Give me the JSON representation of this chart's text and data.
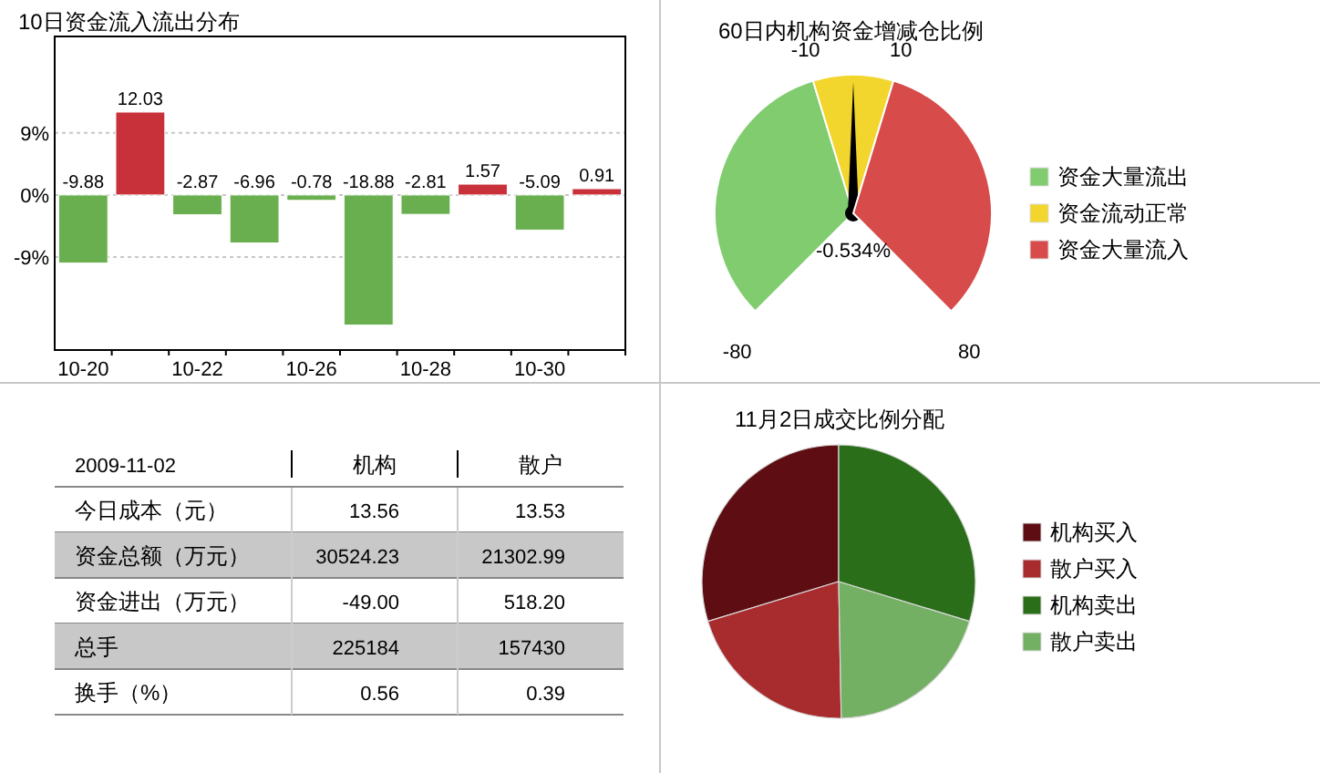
{
  "chart_data": [
    {
      "type": "bar",
      "title": "10日资金流入流出分布",
      "categories": [
        "10-20",
        null,
        "10-22",
        null,
        "10-26",
        null,
        "10-28",
        null,
        "10-30",
        null
      ],
      "values": [
        -9.88,
        12.03,
        -2.87,
        -6.96,
        -0.78,
        -18.88,
        -2.81,
        1.57,
        -5.09,
        0.91
      ],
      "colors": [
        "#6aaf4f",
        "#c8303a",
        "#6aaf4f",
        "#6aaf4f",
        "#6aaf4f",
        "#6aaf4f",
        "#6aaf4f",
        "#c8303a",
        "#6aaf4f",
        "#c8303a"
      ],
      "ylim": [
        -22.5,
        23
      ],
      "yticks": [
        {
          "value": -9,
          "label": "-9%"
        },
        {
          "value": 0,
          "label": "0%"
        },
        {
          "value": 9,
          "label": "9%"
        }
      ],
      "grid": "y",
      "data_labels": true
    },
    {
      "type": "pie",
      "title": "60日内机构资金增减仓比例",
      "categories": [
        "资金大量流出",
        "资金流动正常",
        "资金大量流入"
      ],
      "values": [
        43.75,
        12.5,
        43.75
      ],
      "colors": [
        "#80cc6e",
        "#f2d52d",
        "#d84b4b"
      ],
      "needle": "资金流动正常",
      "legend": "right",
      "annotations": [
        "-80",
        "-10",
        "10",
        "80",
        "-0.534%"
      ]
    },
    {
      "type": "other",
      "annotations": [
        "2009-11-02",
        "机构",
        "散户",
        "今日成本（元）",
        "13.56",
        "13.53",
        "资金总额（万元）",
        "30524.23",
        "21302.99",
        "资金进出（万元）",
        "-49.00",
        "518.20",
        "总手",
        "225184",
        "157430",
        "换手（%）",
        "0.56",
        "0.39"
      ]
    },
    {
      "type": "pie",
      "title": "11月2日成交比例分配",
      "categories": [
        "机构买入",
        "散户买入",
        "机构卖出",
        "散户卖出"
      ],
      "values": [
        29.7,
        20.6,
        29.7,
        20.0
      ],
      "colors": [
        "#5e0e12",
        "#a82c2e",
        "#2a6e1a",
        "#74b064"
      ],
      "legend": "right"
    }
  ]
}
